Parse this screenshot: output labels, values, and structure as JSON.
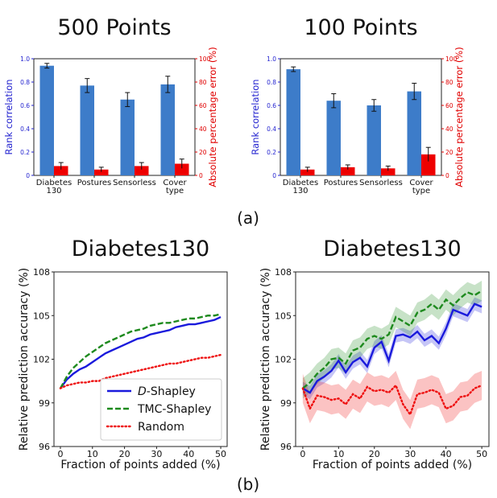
{
  "panel_labels": [
    "(a)",
    "(b)"
  ],
  "chart_data": [
    {
      "type": "bar",
      "title": "500 Points",
      "categories": [
        [
          "Diabetes",
          "130"
        ],
        [
          "Postures"
        ],
        [
          "Sensorless"
        ],
        [
          "Cover",
          "type"
        ]
      ],
      "ylabel": "Rank correlation",
      "y2label": "Absolute percentage error (%)",
      "ylim": [
        0,
        1.0
      ],
      "y2lim": [
        0,
        100
      ],
      "yticks": [
        "0",
        "0.2",
        "0.4",
        "0.6",
        "0.8",
        "1.0"
      ],
      "y2ticks": [
        "0",
        "20",
        "40",
        "60",
        "80",
        "100"
      ],
      "colors": {
        "left_axis": "#2525d0",
        "right_axis": "#e00000",
        "bar_left": "#3d7cc9",
        "bar_right": "#ee0000"
      },
      "series": [
        {
          "axis": "left",
          "values": [
            0.94,
            0.77,
            0.65,
            0.78
          ],
          "errors": [
            0.02,
            0.06,
            0.06,
            0.07
          ]
        },
        {
          "axis": "right",
          "values": [
            8,
            5,
            8,
            10
          ],
          "errors": [
            3,
            2,
            3,
            4
          ]
        }
      ]
    },
    {
      "type": "bar",
      "title": "100 Points",
      "categories": [
        [
          "Diabetes",
          "130"
        ],
        [
          "Postures"
        ],
        [
          "Sensorless"
        ],
        [
          "Cover",
          "type"
        ]
      ],
      "ylabel": "Rank correlation",
      "y2label": "Absolute percentage error (%)",
      "ylim": [
        0,
        1.0
      ],
      "y2lim": [
        0,
        100
      ],
      "yticks": [
        "0",
        "0.2",
        "0.4",
        "0.6",
        "0.8",
        "1.0"
      ],
      "y2ticks": [
        "0",
        "20",
        "40",
        "60",
        "80",
        "100"
      ],
      "colors": {
        "left_axis": "#2525d0",
        "right_axis": "#e00000",
        "bar_left": "#3d7cc9",
        "bar_right": "#ee0000"
      },
      "series": [
        {
          "axis": "left",
          "values": [
            0.91,
            0.64,
            0.6,
            0.72
          ],
          "errors": [
            0.02,
            0.06,
            0.05,
            0.07
          ]
        },
        {
          "axis": "right",
          "values": [
            5,
            7,
            6,
            18
          ],
          "errors": [
            2,
            2,
            2,
            6
          ]
        }
      ]
    },
    {
      "type": "line",
      "title": "Diabetes130",
      "xlabel": "Fraction of points added (%)",
      "ylabel": "Relative prediction accuracy (%)",
      "xlim": [
        -2,
        52
      ],
      "ylim": [
        96,
        108
      ],
      "xticks": [
        0,
        10,
        20,
        30,
        40,
        50
      ],
      "yticks": [
        96,
        99,
        102,
        105,
        108
      ],
      "legend": "lower-right",
      "x": [
        0,
        2,
        4,
        6,
        8,
        10,
        12,
        14,
        16,
        18,
        20,
        22,
        24,
        26,
        28,
        30,
        32,
        34,
        36,
        38,
        40,
        42,
        44,
        46,
        48,
        50
      ],
      "series": [
        {
          "name": "D-Shapley",
          "legend_prefix": "D",
          "legend_suffix": "-Shapley",
          "color": "#1a1adc",
          "dash": "solid",
          "values": [
            100,
            100.6,
            101.0,
            101.3,
            101.5,
            101.8,
            102.1,
            102.4,
            102.6,
            102.8,
            103.0,
            103.2,
            103.4,
            103.5,
            103.7,
            103.8,
            103.9,
            104.0,
            104.2,
            104.3,
            104.4,
            104.4,
            104.5,
            104.6,
            104.7,
            104.9
          ]
        },
        {
          "name": "TMC-Shapley",
          "color": "#1e8a1e",
          "dash": "dashed",
          "values": [
            100,
            100.8,
            101.4,
            101.8,
            102.2,
            102.5,
            102.8,
            103.1,
            103.3,
            103.5,
            103.7,
            103.9,
            104.0,
            104.1,
            104.3,
            104.4,
            104.5,
            104.5,
            104.6,
            104.7,
            104.8,
            104.8,
            104.9,
            105.0,
            105.0,
            105.1
          ]
        },
        {
          "name": "Random",
          "color": "#ee1010",
          "dash": "dotted",
          "values": [
            100,
            100.2,
            100.3,
            100.4,
            100.4,
            100.5,
            100.5,
            100.7,
            100.8,
            100.9,
            101.0,
            101.1,
            101.2,
            101.3,
            101.4,
            101.5,
            101.6,
            101.7,
            101.7,
            101.8,
            101.9,
            102.0,
            102.1,
            102.1,
            102.2,
            102.3
          ]
        }
      ]
    },
    {
      "type": "line",
      "title": "Diabetes130",
      "xlabel": "Fraction of points added (%)",
      "ylabel": "Relative prediction accuracy (%)",
      "xlim": [
        -2,
        52
      ],
      "ylim": [
        96,
        108
      ],
      "xticks": [
        0,
        10,
        20,
        30,
        40,
        50
      ],
      "yticks": [
        96,
        99,
        102,
        105,
        108
      ],
      "x": [
        0,
        2,
        4,
        6,
        8,
        10,
        12,
        14,
        16,
        18,
        20,
        22,
        24,
        26,
        28,
        30,
        32,
        34,
        36,
        38,
        40,
        42,
        44,
        46,
        48,
        50
      ],
      "series": [
        {
          "name": "D-Shapley",
          "color": "#1a1adc",
          "dash": "solid",
          "values": [
            100,
            99.7,
            100.5,
            100.8,
            101.2,
            101.9,
            101.1,
            101.8,
            102.1,
            101.5,
            102.8,
            103.2,
            101.9,
            103.6,
            103.7,
            103.5,
            103.9,
            103.3,
            103.6,
            103.1,
            104.1,
            105.4,
            105.2,
            105.0,
            105.8,
            105.6
          ],
          "band": 0.45
        },
        {
          "name": "TMC-Shapley",
          "color": "#1e8a1e",
          "dash": "dashed",
          "values": [
            100,
            100.4,
            101.0,
            101.4,
            102.0,
            102.1,
            101.7,
            102.6,
            102.8,
            103.4,
            103.6,
            103.4,
            103.7,
            104.9,
            104.6,
            104.3,
            105.2,
            105.4,
            105.8,
            105.4,
            106.1,
            105.7,
            106.2,
            106.6,
            106.4,
            106.7
          ],
          "band": 0.7
        },
        {
          "name": "Random",
          "color": "#ee1010",
          "dash": "dotted",
          "values": [
            100,
            98.6,
            99.5,
            99.4,
            99.2,
            99.3,
            98.9,
            99.6,
            99.3,
            100.1,
            99.8,
            99.9,
            99.7,
            100.2,
            98.9,
            98.2,
            99.6,
            99.7,
            99.9,
            99.7,
            98.6,
            98.8,
            99.4,
            99.5,
            100.0,
            100.2
          ],
          "band": 1.0
        }
      ]
    }
  ]
}
